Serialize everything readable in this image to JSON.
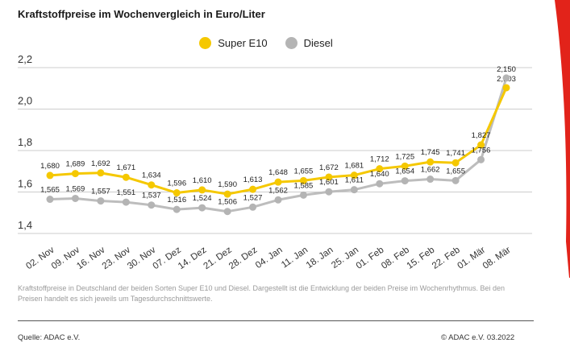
{
  "title": "Kraftstoffpreise im Wochenvergleich in Euro/Liter",
  "note": "Kraftstoffpreise in Deutschland der beiden Sorten Super E10 und Diesel. Dargestellt ist die Entwicklung der beiden Preise im Wochenrhythmus. Bei den Preisen handelt es sich jeweils um Tagesdurchschnittswerte.",
  "source": "Quelle: ADAC e.V.",
  "copyright": "© ADAC e.V. 03.2022",
  "colors": {
    "super_e10": "#f5c800",
    "diesel": "#b4b4b4",
    "accent_red": "#e2231a",
    "grid": "#cccccc"
  },
  "chart_data": {
    "type": "line",
    "categories": [
      "02. Nov",
      "09. Nov",
      "16. Nov",
      "23. Nov",
      "30. Nov",
      "07. Dez",
      "14. Dez",
      "21. Dez",
      "28. Dez",
      "04. Jan",
      "11. Jan",
      "18. Jan",
      "25. Jan",
      "01. Feb",
      "08. Feb",
      "15. Feb",
      "22. Feb",
      "01. Mär",
      "08. Mär"
    ],
    "series": [
      {
        "name": "Super E10",
        "values": [
          1.68,
          1.689,
          1.692,
          1.671,
          1.634,
          1.596,
          1.61,
          1.59,
          1.613,
          1.648,
          1.655,
          1.672,
          1.681,
          1.712,
          1.725,
          1.745,
          1.741,
          1.827,
          2.103
        ],
        "labels": [
          "1,680",
          "1,689",
          "1,692",
          "1,671",
          "1,634",
          "1,596",
          "1,610",
          "1,590",
          "1,613",
          "1,648",
          "1,655",
          "1,672",
          "1,681",
          "1,712",
          "1,725",
          "1,745",
          "1,741",
          "1,827",
          "2,103"
        ]
      },
      {
        "name": "Diesel",
        "values": [
          1.565,
          1.569,
          1.557,
          1.551,
          1.537,
          1.516,
          1.524,
          1.506,
          1.527,
          1.562,
          1.585,
          1.601,
          1.611,
          1.64,
          1.654,
          1.662,
          1.655,
          1.756,
          2.15
        ],
        "labels": [
          "1,565",
          "1,569",
          "1,557",
          "1,551",
          "1,537",
          "1,516",
          "1,524",
          "1,506",
          "1,527",
          "1,562",
          "1,585",
          "1,601",
          "1,611",
          "1,640",
          "1,654",
          "1,662",
          "1,655",
          "1,756",
          "2,150"
        ]
      }
    ],
    "yticks": [
      1.4,
      1.6,
      1.8,
      2.0,
      2.2
    ],
    "ytick_labels": [
      "1,4",
      "1,6",
      "1,8",
      "2,0",
      "2,2"
    ],
    "ylim": [
      1.4,
      2.2
    ],
    "grid": true,
    "legend_position": "top-center"
  }
}
